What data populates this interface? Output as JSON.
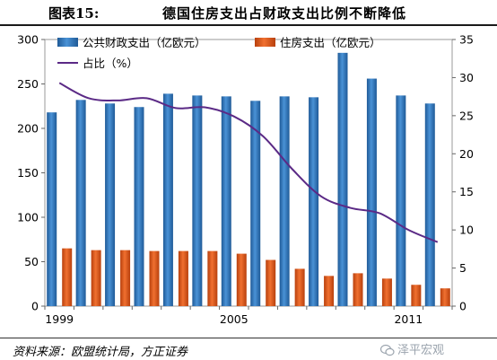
{
  "figure": {
    "number": "图表15:",
    "title": "德国住房支出占财政支出比例不断降低",
    "source": "资料来源：欧盟统计局，方正证券",
    "watermark": "泽平宏观"
  },
  "chart_data": {
    "type": "bar",
    "categories": [
      "1999",
      "2000",
      "2001",
      "2002",
      "2003",
      "2004",
      "2005",
      "2006",
      "2007",
      "2008",
      "2009",
      "2010",
      "2011",
      "2012"
    ],
    "x_tick_labels": [
      "1999",
      "",
      "",
      "",
      "",
      "",
      "2005",
      "",
      "",
      "",
      "",
      "",
      "2011",
      ""
    ],
    "series": [
      {
        "name": "公共财政支出（亿欧元）",
        "axis": "left",
        "type": "bar",
        "color": "#2e75b6",
        "values": [
          218,
          232,
          228,
          224,
          239,
          237,
          236,
          231,
          236,
          235,
          285,
          256,
          237,
          228
        ]
      },
      {
        "name": "住房支出（亿欧元）",
        "axis": "left",
        "type": "bar",
        "color": "#e05a1e",
        "values": [
          65,
          63,
          63,
          62,
          62,
          62,
          59,
          52,
          42,
          34,
          37,
          31,
          24,
          20
        ]
      },
      {
        "name": "占比（%）",
        "axis": "right",
        "type": "line",
        "color": "#5b2a86",
        "values": [
          29.3,
          27.3,
          27.0,
          27.3,
          26.0,
          26.1,
          24.9,
          22.3,
          18.0,
          14.4,
          12.9,
          12.2,
          10.0,
          8.4
        ]
      }
    ],
    "ylim_left": [
      0,
      300
    ],
    "ylim_right": [
      0,
      35
    ],
    "yticks_left": [
      "0",
      "50",
      "100",
      "150",
      "200",
      "250",
      "300"
    ],
    "yticks_right": [
      "0",
      "5",
      "10",
      "15",
      "20",
      "25",
      "30",
      "35"
    ],
    "legend_position": "top-left",
    "grid": false
  }
}
